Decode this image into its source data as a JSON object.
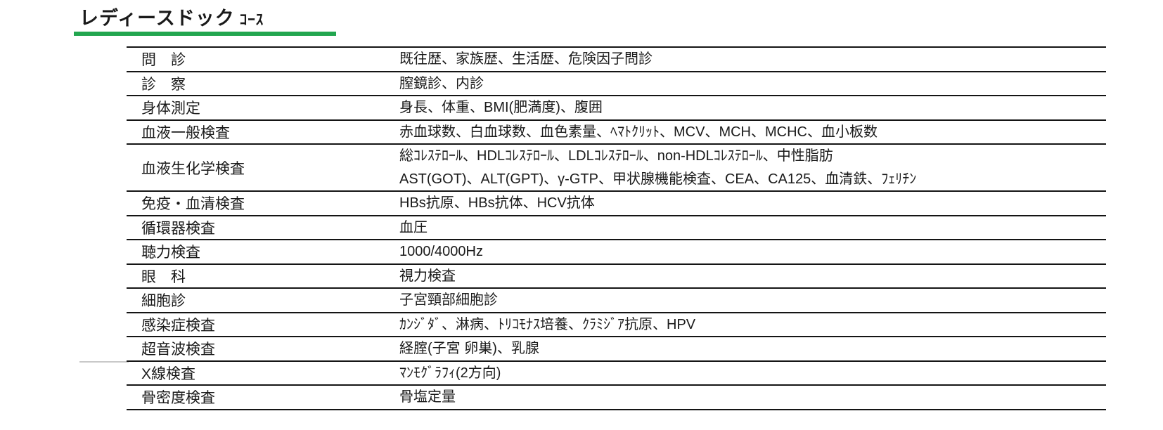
{
  "title": {
    "main": "レディースドック",
    "suffix": "ｺｰｽ"
  },
  "accent_color": "#22a64f",
  "table": {
    "rows": [
      {
        "label": "問　診",
        "lines": [
          "既往歴、家族歴、生活歴、危険因子問診"
        ]
      },
      {
        "label": "診　察",
        "lines": [
          "膣鏡診、内診"
        ]
      },
      {
        "label": "身体測定",
        "lines": [
          "身長、体重、BMI(肥満度)、腹囲"
        ]
      },
      {
        "label": "血液一般検査",
        "lines": [
          "赤血球数、白血球数、血色素量、ﾍﾏﾄｸﾘｯﾄ、MCV、MCH、MCHC、血小板数"
        ]
      },
      {
        "label": "血液生化学検査",
        "lines": [
          "総ｺﾚｽﾃﾛｰﾙ、HDLｺﾚｽﾃﾛｰﾙ、LDLｺﾚｽﾃﾛｰﾙ、non-HDLｺﾚｽﾃﾛｰﾙ、中性脂肪",
          "AST(GOT)、ALT(GPT)、γ-GTP、甲状腺機能検査、CEA、CA125、血清鉄、ﾌｪﾘﾁﾝ"
        ]
      },
      {
        "label": "免疫・血清検査",
        "lines": [
          "HBs抗原、HBs抗体、HCV抗体"
        ]
      },
      {
        "label": "循環器検査",
        "lines": [
          "血圧"
        ]
      },
      {
        "label": "聴力検査",
        "lines": [
          "1000/4000Hz"
        ]
      },
      {
        "label": "眼　科",
        "lines": [
          "視力検査"
        ]
      },
      {
        "label": "細胞診",
        "lines": [
          "子宮頸部細胞診"
        ]
      },
      {
        "label": "感染症検査",
        "lines": [
          "ｶﾝｼﾞﾀﾞ、淋病、ﾄﾘｺﾓﾅｽ培養、ｸﾗﾐｼﾞｱ抗原、HPV"
        ]
      },
      {
        "label": "超音波検査",
        "lines": [
          "経腟(子宮 卵巣)、乳腺"
        ]
      },
      {
        "label": "X線検査",
        "lines": [
          "ﾏﾝﾓｸﾞﾗﾌｨ(2方向)"
        ]
      },
      {
        "label": "骨密度検査",
        "lines": [
          "骨塩定量"
        ]
      }
    ]
  }
}
